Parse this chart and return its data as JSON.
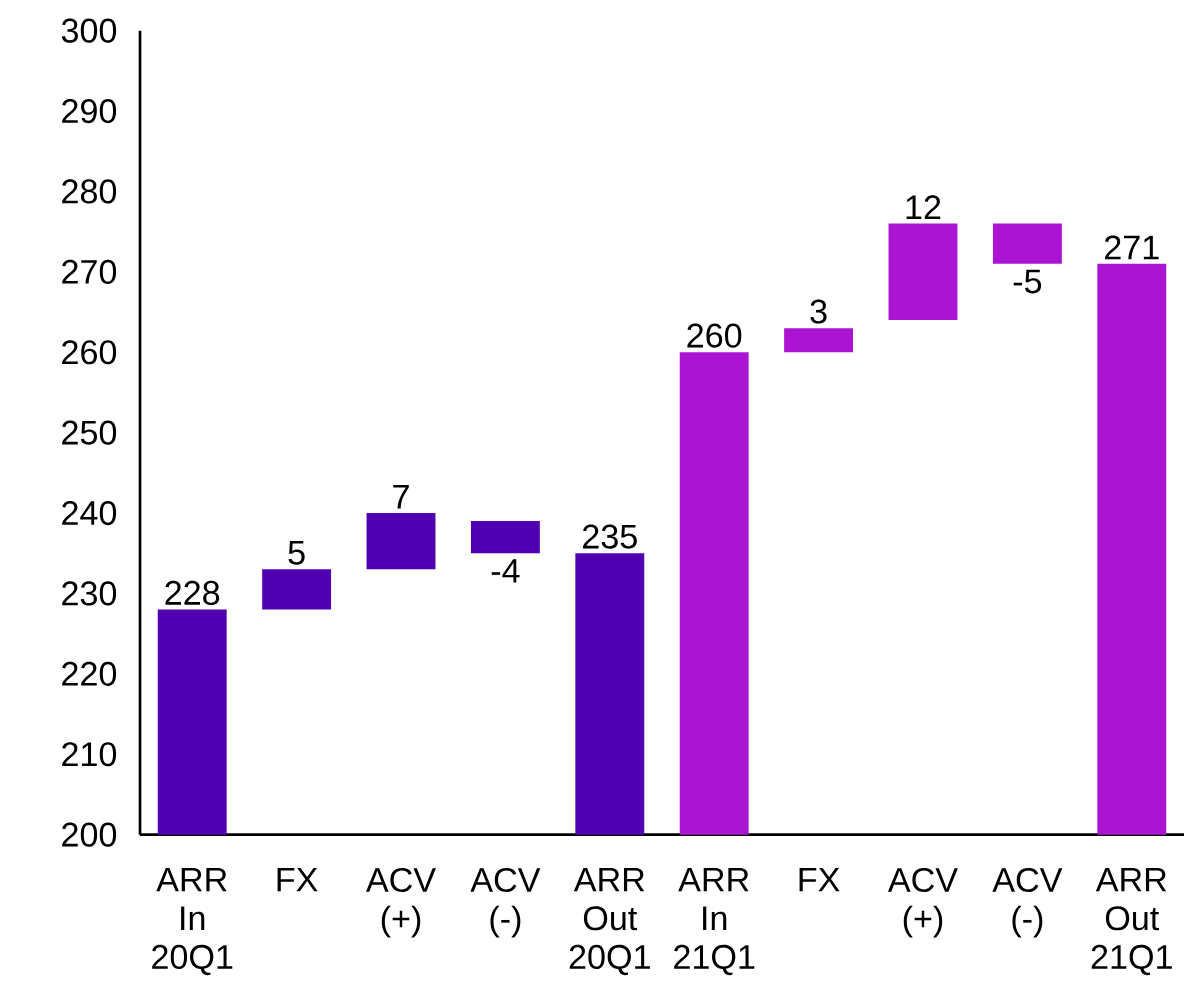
{
  "chart_data": {
    "type": "bar",
    "categories": [
      "ARR In 20Q1",
      "FX",
      "ACV (+)",
      "ACV (-)",
      "ARR Out 20Q1",
      "ARR In 21Q1",
      "FX",
      "ACV (+)",
      "ACV (-)",
      "ARR Out 21Q1"
    ],
    "values": [
      28,
      5,
      7,
      -4,
      35,
      60,
      3,
      12,
      -5,
      71
    ],
    "base": [
      200,
      228,
      233,
      239,
      200,
      200,
      260,
      264,
      276,
      200
    ],
    "value_labels": [
      "228",
      "5",
      "7",
      "-4",
      "235",
      "260",
      "3",
      "12",
      "-5",
      "271"
    ],
    "colors": [
      "#5000b0",
      "#5000b0",
      "#5000b0",
      "#5000b0",
      "#5000b0",
      "#ac14d4",
      "#ac14d4",
      "#ac14d4",
      "#ac14d4",
      "#ac14d4"
    ],
    "ylim": [
      200,
      300
    ],
    "yticks": [
      200,
      210,
      220,
      230,
      240,
      250,
      260,
      270,
      280,
      290,
      300
    ]
  }
}
